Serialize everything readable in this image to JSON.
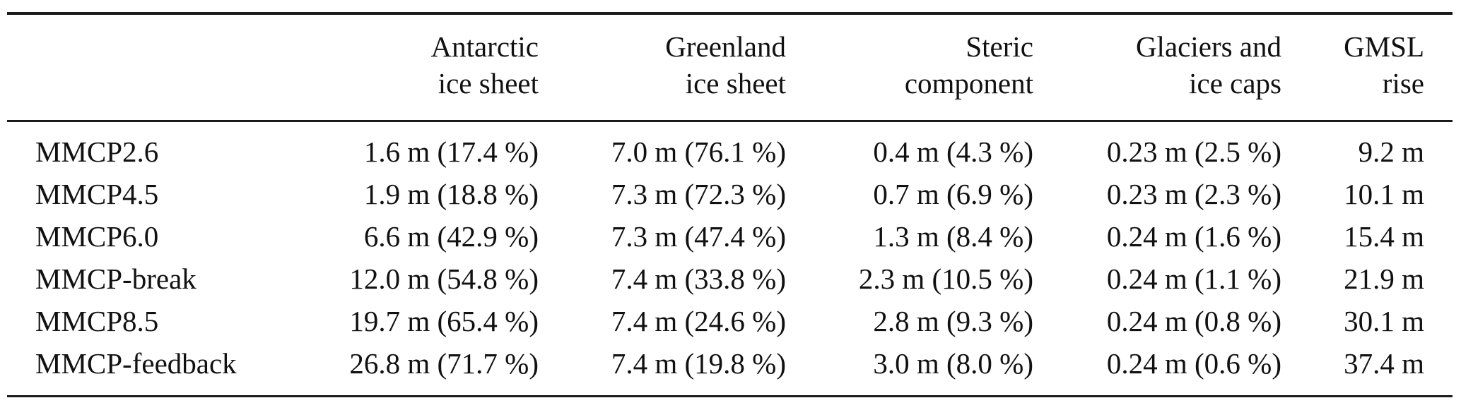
{
  "table": {
    "columns": [
      {
        "line1": "",
        "line2": ""
      },
      {
        "line1": "Antarctic",
        "line2": "ice sheet"
      },
      {
        "line1": "Greenland",
        "line2": "ice sheet"
      },
      {
        "line1": "Steric",
        "line2": "component"
      },
      {
        "line1": "Glaciers and",
        "line2": "ice caps"
      },
      {
        "line1": "GMSL",
        "line2": "rise"
      }
    ],
    "rows": [
      {
        "scenario": "MMCP2.6",
        "antarctic": "1.6 m (17.4 %)",
        "greenland": "7.0 m (76.1 %)",
        "steric": "0.4 m (4.3 %)",
        "glaciers": "0.23 m (2.5 %)",
        "gmsl": "9.2 m"
      },
      {
        "scenario": "MMCP4.5",
        "antarctic": "1.9 m (18.8 %)",
        "greenland": "7.3 m (72.3 %)",
        "steric": "0.7 m (6.9 %)",
        "glaciers": "0.23 m (2.3 %)",
        "gmsl": "10.1 m"
      },
      {
        "scenario": "MMCP6.0",
        "antarctic": "6.6 m (42.9 %)",
        "greenland": "7.3 m (47.4 %)",
        "steric": "1.3 m (8.4 %)",
        "glaciers": "0.24 m (1.6 %)",
        "gmsl": "15.4 m"
      },
      {
        "scenario": "MMCP-break",
        "antarctic": "12.0 m (54.8 %)",
        "greenland": "7.4 m (33.8 %)",
        "steric": "2.3 m (10.5 %)",
        "glaciers": "0.24 m (1.1 %)",
        "gmsl": "21.9 m"
      },
      {
        "scenario": "MMCP8.5",
        "antarctic": "19.7 m (65.4 %)",
        "greenland": "7.4 m (24.6 %)",
        "steric": "2.8 m (9.3 %)",
        "glaciers": "0.24 m (0.8 %)",
        "gmsl": "30.1 m"
      },
      {
        "scenario": "MMCP-feedback",
        "antarctic": "26.8 m (71.7 %)",
        "greenland": "7.4 m (19.8 %)",
        "steric": "3.0 m (8.0 %)",
        "glaciers": "0.24 m (0.6 %)",
        "gmsl": "37.4 m"
      }
    ]
  }
}
